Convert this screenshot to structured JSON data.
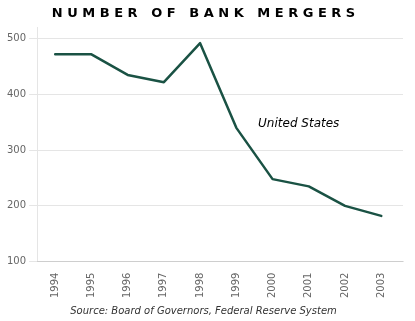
{
  "chart_data": {
    "type": "line",
    "title": "N U M B E R   O F   B A N K   M E R G E R S",
    "subtitle": "Source: Board of Governors, Federal Reserve System",
    "x": [
      1994,
      1995,
      1996,
      1997,
      1998,
      1999,
      2000,
      2001,
      2002,
      2003
    ],
    "values": [
      472,
      472,
      435,
      422,
      492,
      340,
      248,
      235,
      200,
      182
    ],
    "color": "#1a5244",
    "xlim": [
      1993.5,
      2003.6
    ],
    "xticks": [
      1994,
      1995,
      1996,
      1997,
      1998,
      1999,
      2000,
      2001,
      2002,
      2003
    ],
    "ylim": [
      100,
      520
    ],
    "yticks": [
      100,
      200,
      300,
      400,
      500
    ],
    "grid": "y",
    "annotations": [
      {
        "text": "United States",
        "x": 1999.6,
        "y": 342
      }
    ]
  }
}
